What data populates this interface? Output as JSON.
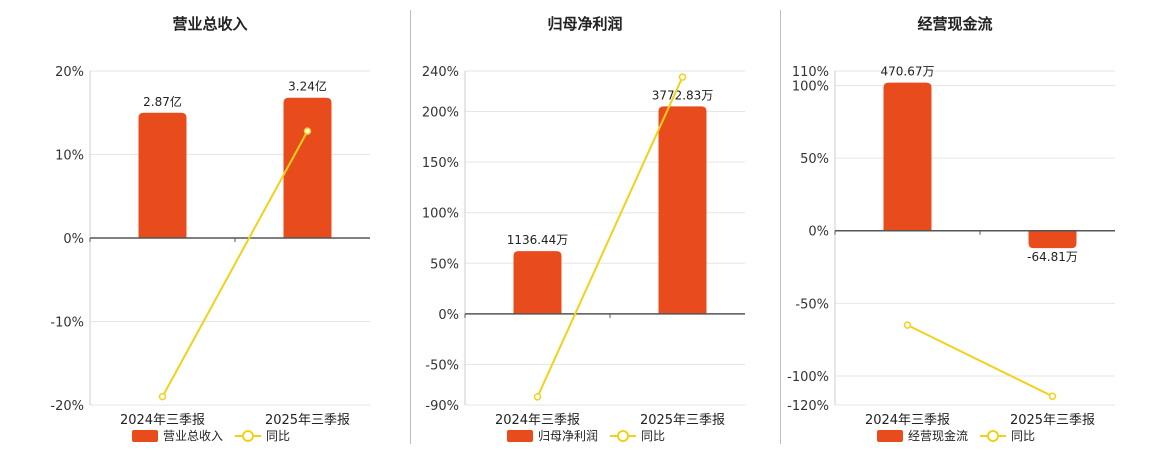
{
  "legend": {
    "line_label": "同比"
  },
  "colors": {
    "bar": "#e84c1c",
    "line": "#f2d11b",
    "grid": "#e6e6e6",
    "axis": "#555555"
  },
  "charts": [
    {
      "title": "营业总收入",
      "ylim": [
        -20,
        20
      ],
      "y_ticks": [
        20,
        10,
        0,
        -10,
        -20
      ],
      "y_tick_labels": [
        "20%",
        "10%",
        "0%",
        "-10%",
        "-20%"
      ],
      "bar_labels": [
        "2.87亿",
        "3.24亿"
      ]
    },
    {
      "title": "归母净利润",
      "ylim": [
        -90,
        240
      ],
      "y_ticks": [
        240,
        200,
        150,
        100,
        50,
        0,
        -50,
        -90
      ],
      "y_tick_labels": [
        "240%",
        "200%",
        "150%",
        "100%",
        "50%",
        "0%",
        "-50%",
        "-90%"
      ],
      "bar_labels": [
        "1136.44万",
        "3772.83万"
      ]
    },
    {
      "title": "经营现金流",
      "ylim": [
        -120,
        110
      ],
      "y_ticks": [
        110,
        100,
        50,
        0,
        -50,
        -100,
        -120
      ],
      "y_tick_labels": [
        "110%",
        "100%",
        "50%",
        "0%",
        "-50%",
        "-100%",
        "-120%"
      ],
      "bar_labels": [
        "470.67万",
        "-64.81万"
      ]
    }
  ],
  "chart_data": [
    {
      "type": "bar",
      "title": "营业总收入",
      "categories": [
        "2024年三季报",
        "2025年三季报"
      ],
      "series": [
        {
          "name": "营业总收入",
          "type": "bar",
          "values": [
            15,
            16.8
          ]
        },
        {
          "name": "同比",
          "type": "line",
          "values": [
            -19,
            12.8
          ]
        }
      ],
      "ylim": [
        -20,
        20
      ],
      "grid": true,
      "legend": "bottom"
    },
    {
      "type": "bar",
      "title": "归母净利润",
      "categories": [
        "2024年三季报",
        "2025年三季报"
      ],
      "series": [
        {
          "name": "归母净利润",
          "type": "bar",
          "values": [
            62,
            205
          ]
        },
        {
          "name": "同比",
          "type": "line",
          "values": [
            -82,
            234
          ]
        }
      ],
      "ylim": [
        -90,
        240
      ],
      "grid": true,
      "legend": "bottom"
    },
    {
      "type": "bar",
      "title": "经营现金流",
      "categories": [
        "2024年三季报",
        "2025年三季报"
      ],
      "series": [
        {
          "name": "经营现金流",
          "type": "bar",
          "values": [
            102,
            -12
          ]
        },
        {
          "name": "同比",
          "type": "line",
          "values": [
            -65,
            -114
          ]
        }
      ],
      "ylim": [
        -120,
        110
      ],
      "grid": true,
      "legend": "bottom"
    }
  ]
}
